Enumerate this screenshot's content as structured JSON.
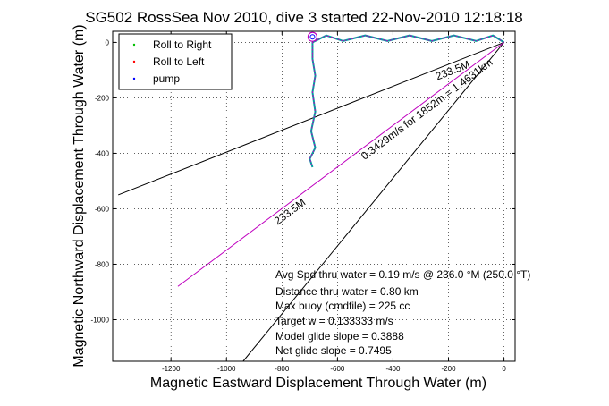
{
  "chart_data": {
    "type": "line",
    "title": "SG502 RossSea Nov 2010, dive 3 started 22-Nov-2010 12:18:18",
    "xlabel": "Magnetic Eastward Displacement Through Water (m)",
    "ylabel": "Magnetic Northward Displacement Through Water (m)",
    "xlim": [
      -1410,
      40
    ],
    "ylim": [
      -1150,
      40
    ],
    "xticks": [
      -1200,
      -1000,
      -800,
      -600,
      -400,
      -200,
      0
    ],
    "yticks": [
      0,
      -200,
      -400,
      -600,
      -800,
      -1000
    ],
    "grid": true,
    "legend_position": "top-left",
    "legend": [
      {
        "label": "Roll to Right",
        "color": "#00bf00",
        "marker": "dot"
      },
      {
        "label": "Roll to Left",
        "color": "#ff0000",
        "marker": "dot"
      },
      {
        "label": "pump",
        "color": "#0000ff",
        "marker": "dot"
      }
    ],
    "lines": [
      {
        "name": "direction line 1",
        "color": "#000000",
        "x": [
          0,
          -1390
        ],
        "y": [
          0,
          -550
        ]
      },
      {
        "name": "direction line 2",
        "color": "#000000",
        "x": [
          0,
          -940
        ],
        "y": [
          0,
          -1150
        ]
      },
      {
        "name": "track line",
        "color": "#bf00bf",
        "x": [
          0,
          -1175
        ],
        "y": [
          0,
          -880
        ]
      }
    ],
    "track": {
      "x": [
        0,
        -40,
        -100,
        -180,
        -260,
        -340,
        -420,
        -500,
        -580,
        -640,
        -670,
        -690,
        -690,
        -680,
        -690,
        -680,
        -695,
        -680,
        -700,
        -690
      ],
      "y": [
        0,
        25,
        5,
        25,
        5,
        25,
        5,
        25,
        5,
        25,
        10,
        0,
        -60,
        -120,
        -180,
        -250,
        -320,
        -380,
        -420,
        -450
      ]
    },
    "line_labels": [
      {
        "text": "233.5M",
        "at": "upper line"
      },
      {
        "text": "0.3429m/s for 1852m = 1.4631km",
        "at": "middle line"
      },
      {
        "text": "233.5M",
        "at": "middle line, lower"
      }
    ],
    "annotations": [
      "Avg Spd thru water =  0.19 m/s @ 236.0    °M (250.0 °T)",
      "Distance thru water =  0.80 km",
      "Max buoy (cmdfile) = 225 cc",
      "Target w = 0.133333 m/s",
      "Model glide slope = 0.3888",
      "Net glide slope = 0.7495"
    ]
  }
}
